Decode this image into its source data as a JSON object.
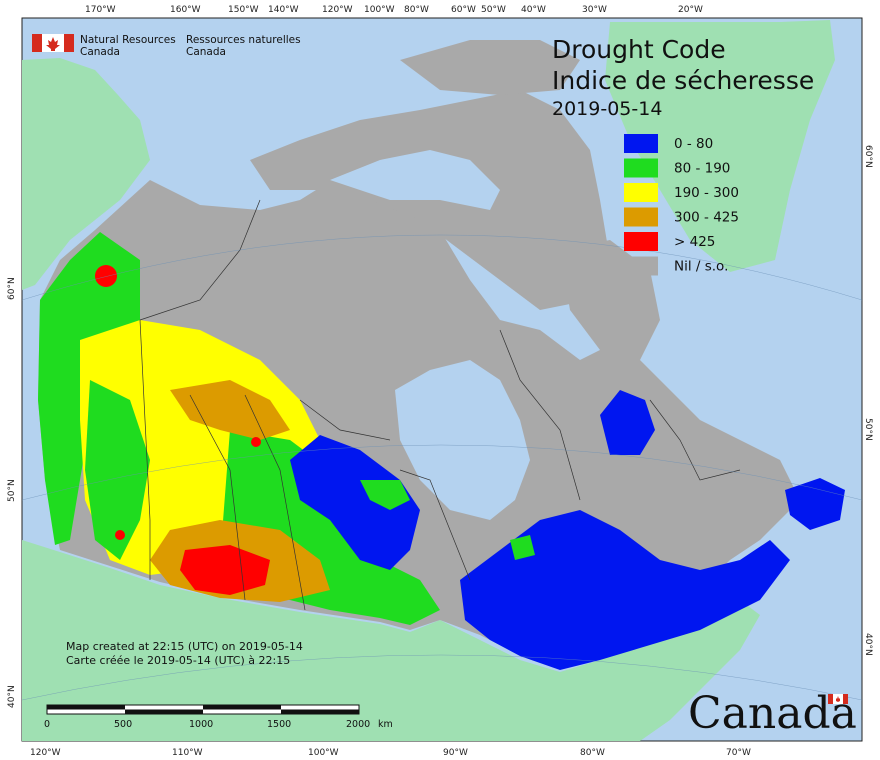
{
  "header": {
    "org_en_line1": "Natural Resources",
    "org_en_line2": "Canada",
    "org_fr_line1": "Ressources naturelles",
    "org_fr_line2": "Canada"
  },
  "title": {
    "line1": "Drought Code",
    "line2": "Indice de sécheresse",
    "date": "2019-05-14"
  },
  "legend": {
    "items": [
      {
        "label": "0 - 80",
        "color": "#0016f0"
      },
      {
        "label": "80 - 190",
        "color": "#1fdc1f"
      },
      {
        "label": "190 - 300",
        "color": "#ffff00"
      },
      {
        "label": "300 - 425",
        "color": "#dc9b00"
      },
      {
        "label": "> 425",
        "color": "#ff0000"
      },
      {
        "label": "Nil / s.o.",
        "color": "#a9a9a9"
      }
    ]
  },
  "notes": {
    "created_en": "Map created at 22:15 (UTC) on 2019-05-14",
    "created_fr": "Carte créée le 2019-05-14 (UTC) à 22:15"
  },
  "scalebar": {
    "labels": [
      "0",
      "500",
      "1000",
      "1500",
      "2000"
    ],
    "unit": "km"
  },
  "graticule": {
    "top": [
      "170°W",
      "160°W",
      "150°W",
      "140°W",
      "120°W",
      "100°W",
      "80°W",
      "60°W",
      "50°W",
      "40°W",
      "30°W",
      "20°W"
    ],
    "bottom": [
      "120°W",
      "110°W",
      "100°W",
      "90°W",
      "80°W",
      "70°W"
    ],
    "left": [
      "60°N",
      "50°N",
      "40°N"
    ],
    "right": [
      "60°N",
      "50°N",
      "40°N"
    ]
  },
  "wordmark": "Canada",
  "colors": {
    "ocean": "#b4d2ef",
    "foreign_land": "#9fe0b2",
    "nil": "#a9a9a9"
  }
}
